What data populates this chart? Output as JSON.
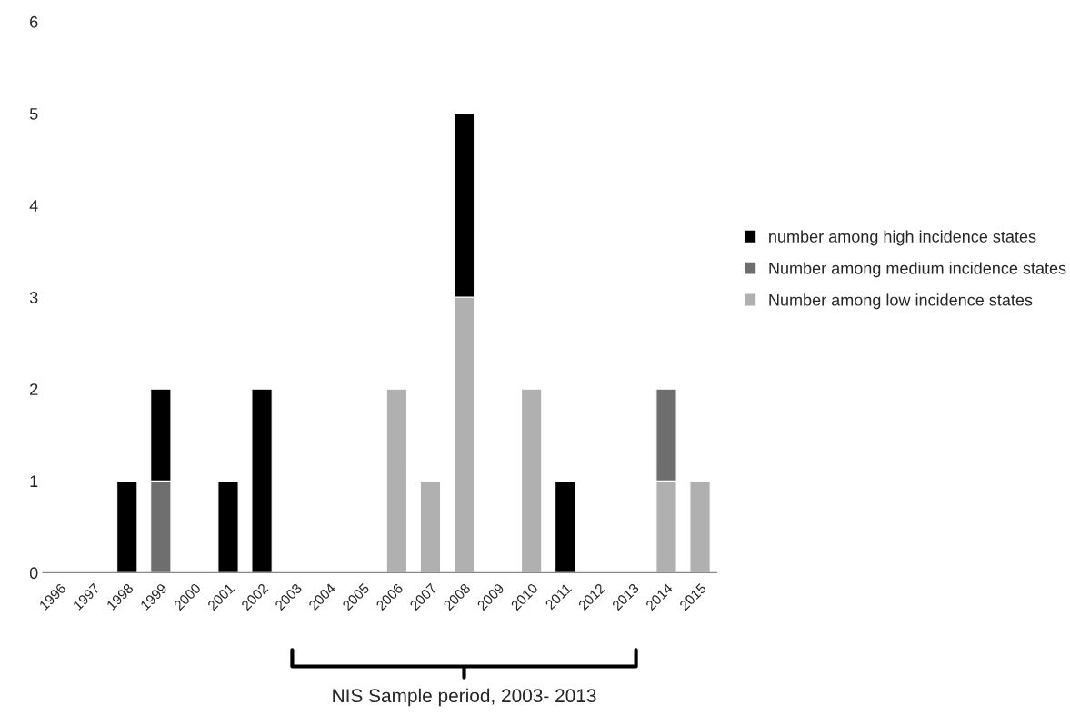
{
  "chart_data": {
    "type": "bar",
    "stacked": true,
    "categories": [
      "1996",
      "1997",
      "1998",
      "1999",
      "2000",
      "2001",
      "2002",
      "2003",
      "2004",
      "2005",
      "2006",
      "2007",
      "2008",
      "2009",
      "2010",
      "2011",
      "2012",
      "2013",
      "2014",
      "2015"
    ],
    "series": [
      {
        "name": "Number among low incidence states",
        "color": "#b0b0b0",
        "values": [
          0,
          0,
          0,
          0,
          0,
          0,
          0,
          0,
          0,
          0,
          2,
          1,
          3,
          0,
          2,
          0,
          0,
          0,
          1,
          1
        ]
      },
      {
        "name": "Number among medium incidence states",
        "color": "#6e6e6e",
        "values": [
          0,
          0,
          0,
          1,
          0,
          0,
          0,
          0,
          0,
          0,
          0,
          0,
          0,
          0,
          0,
          0,
          0,
          0,
          1,
          0
        ]
      },
      {
        "name": "number among high incidence states",
        "color": "#000000",
        "values": [
          0,
          0,
          1,
          1,
          0,
          1,
          2,
          0,
          0,
          0,
          0,
          0,
          2,
          0,
          0,
          1,
          0,
          0,
          0,
          0
        ]
      }
    ],
    "ylim": [
      0,
      6
    ],
    "yticks": [
      0,
      1,
      2,
      3,
      4,
      5,
      6
    ],
    "grid": false,
    "legend": "right",
    "annotations": [
      "NIS Sample period, 2003- 2013"
    ]
  }
}
